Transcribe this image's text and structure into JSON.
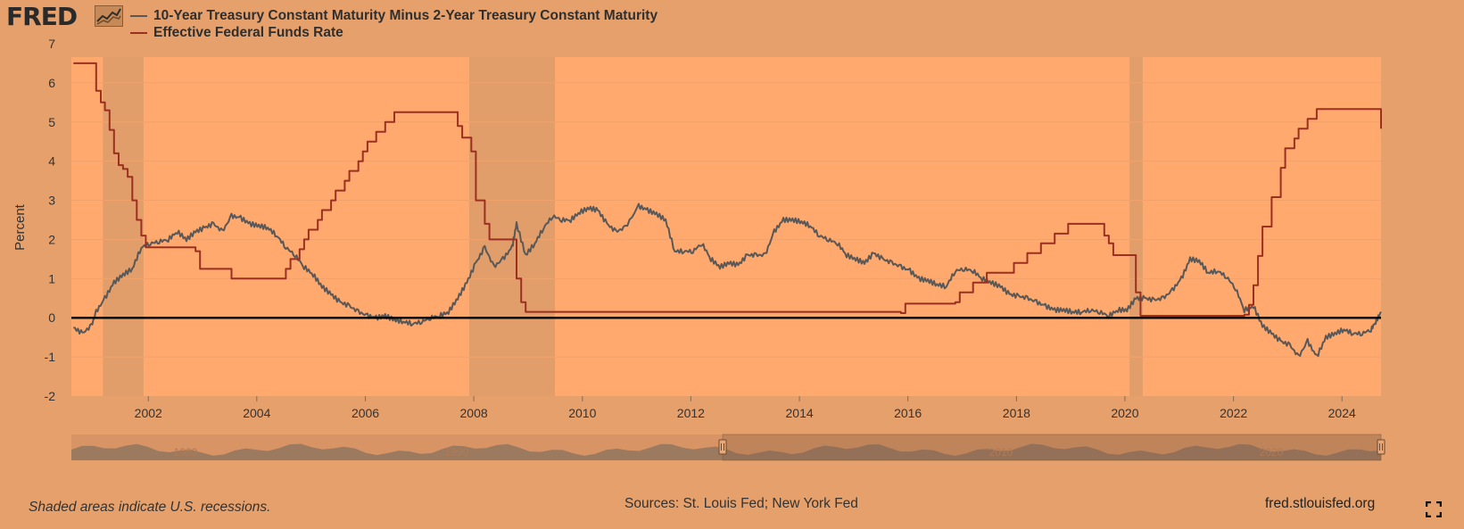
{
  "header": {
    "logo_text": "FRED",
    "logo_icon": "chart-line-icon"
  },
  "colors": {
    "background": "#E5A06B",
    "plot_bg": "#FFA96E",
    "recession": "#E29E6A",
    "spread_line": "#585858",
    "fedfunds_line": "#9B2F20",
    "zero_line": "#000000",
    "navigator": "#9C7A60"
  },
  "chart_data": {
    "type": "line",
    "ylabel": "Percent",
    "ylim": [
      -2,
      7
    ],
    "y_ticks": [
      "7",
      "6",
      "5",
      "4",
      "3",
      "2",
      "1",
      "0",
      "-1",
      "-2"
    ],
    "x_range": [
      "2000-08-01",
      "2024-09-20"
    ],
    "x_ticks": [
      "2002",
      "2004",
      "2006",
      "2008",
      "2010",
      "2012",
      "2014",
      "2016",
      "2018",
      "2020",
      "2022",
      "2024"
    ],
    "zero_line": true,
    "legend_position": "top-left",
    "recessions": [
      [
        "2001-03-01",
        "2001-11-30"
      ],
      [
        "2007-12-01",
        "2009-06-30"
      ],
      [
        "2020-02-01",
        "2020-04-30"
      ]
    ],
    "series": [
      {
        "name": "10-Year Treasury Constant Maturity Minus 2-Year Treasury Constant Maturity",
        "color": "#585858",
        "points": [
          [
            "2000-08",
            -0.25
          ],
          [
            "2000-10",
            -0.4
          ],
          [
            "2000-12",
            -0.2
          ],
          [
            "2001-01",
            0.15
          ],
          [
            "2001-03",
            0.5
          ],
          [
            "2001-05",
            0.9
          ],
          [
            "2001-07",
            1.1
          ],
          [
            "2001-09",
            1.25
          ],
          [
            "2001-11",
            1.8
          ],
          [
            "2002-01",
            1.9
          ],
          [
            "2002-03",
            1.95
          ],
          [
            "2002-05",
            2.0
          ],
          [
            "2002-07",
            2.2
          ],
          [
            "2002-09",
            2.0
          ],
          [
            "2002-11",
            2.2
          ],
          [
            "2003-01",
            2.3
          ],
          [
            "2003-03",
            2.4
          ],
          [
            "2003-05",
            2.2
          ],
          [
            "2003-07",
            2.6
          ],
          [
            "2003-09",
            2.55
          ],
          [
            "2003-11",
            2.4
          ],
          [
            "2004-01",
            2.35
          ],
          [
            "2004-03",
            2.3
          ],
          [
            "2004-05",
            2.1
          ],
          [
            "2004-07",
            1.8
          ],
          [
            "2004-09",
            1.6
          ],
          [
            "2004-11",
            1.3
          ],
          [
            "2005-01",
            1.1
          ],
          [
            "2005-03",
            0.8
          ],
          [
            "2005-05",
            0.6
          ],
          [
            "2005-07",
            0.4
          ],
          [
            "2005-09",
            0.3
          ],
          [
            "2005-11",
            0.15
          ],
          [
            "2006-01",
            0.05
          ],
          [
            "2006-03",
            0.0
          ],
          [
            "2006-05",
            0.05
          ],
          [
            "2006-07",
            -0.05
          ],
          [
            "2006-09",
            -0.1
          ],
          [
            "2006-11",
            -0.15
          ],
          [
            "2007-01",
            -0.1
          ],
          [
            "2007-03",
            0.0
          ],
          [
            "2007-05",
            0.05
          ],
          [
            "2007-07",
            0.15
          ],
          [
            "2007-09",
            0.5
          ],
          [
            "2007-11",
            0.9
          ],
          [
            "2008-01",
            1.4
          ],
          [
            "2008-03",
            1.8
          ],
          [
            "2008-05",
            1.3
          ],
          [
            "2008-07",
            1.5
          ],
          [
            "2008-09",
            1.8
          ],
          [
            "2008-10",
            2.4
          ],
          [
            "2008-12",
            1.6
          ],
          [
            "2009-02",
            1.9
          ],
          [
            "2009-04",
            2.3
          ],
          [
            "2009-06",
            2.6
          ],
          [
            "2009-08",
            2.5
          ],
          [
            "2009-10",
            2.5
          ],
          [
            "2009-12",
            2.7
          ],
          [
            "2010-02",
            2.8
          ],
          [
            "2010-04",
            2.75
          ],
          [
            "2010-06",
            2.4
          ],
          [
            "2010-08",
            2.2
          ],
          [
            "2010-10",
            2.3
          ],
          [
            "2011-01",
            2.85
          ],
          [
            "2011-03",
            2.75
          ],
          [
            "2011-05",
            2.65
          ],
          [
            "2011-07",
            2.5
          ],
          [
            "2011-09",
            1.7
          ],
          [
            "2011-11",
            1.7
          ],
          [
            "2012-01",
            1.7
          ],
          [
            "2012-03",
            1.9
          ],
          [
            "2012-05",
            1.5
          ],
          [
            "2012-07",
            1.3
          ],
          [
            "2012-09",
            1.4
          ],
          [
            "2012-11",
            1.35
          ],
          [
            "2013-01",
            1.6
          ],
          [
            "2013-03",
            1.6
          ],
          [
            "2013-05",
            1.6
          ],
          [
            "2013-07",
            2.2
          ],
          [
            "2013-09",
            2.5
          ],
          [
            "2013-11",
            2.5
          ],
          [
            "2014-01",
            2.45
          ],
          [
            "2014-03",
            2.35
          ],
          [
            "2014-05",
            2.1
          ],
          [
            "2014-07",
            2.0
          ],
          [
            "2014-09",
            1.9
          ],
          [
            "2014-11",
            1.6
          ],
          [
            "2015-01",
            1.5
          ],
          [
            "2015-03",
            1.4
          ],
          [
            "2015-05",
            1.65
          ],
          [
            "2015-07",
            1.5
          ],
          [
            "2015-09",
            1.4
          ],
          [
            "2015-11",
            1.3
          ],
          [
            "2016-01",
            1.2
          ],
          [
            "2016-03",
            1.0
          ],
          [
            "2016-05",
            0.95
          ],
          [
            "2016-07",
            0.85
          ],
          [
            "2016-09",
            0.8
          ],
          [
            "2016-11",
            1.2
          ],
          [
            "2017-01",
            1.25
          ],
          [
            "2017-03",
            1.2
          ],
          [
            "2017-05",
            1.0
          ],
          [
            "2017-07",
            0.9
          ],
          [
            "2017-09",
            0.8
          ],
          [
            "2017-11",
            0.6
          ],
          [
            "2018-01",
            0.55
          ],
          [
            "2018-03",
            0.5
          ],
          [
            "2018-05",
            0.4
          ],
          [
            "2018-07",
            0.3
          ],
          [
            "2018-09",
            0.2
          ],
          [
            "2018-11",
            0.2
          ],
          [
            "2019-01",
            0.15
          ],
          [
            "2019-03",
            0.15
          ],
          [
            "2019-05",
            0.2
          ],
          [
            "2019-07",
            0.15
          ],
          [
            "2019-09",
            0.05
          ],
          [
            "2019-11",
            0.2
          ],
          [
            "2020-01",
            0.2
          ],
          [
            "2020-03",
            0.5
          ],
          [
            "2020-05",
            0.5
          ],
          [
            "2020-07",
            0.45
          ],
          [
            "2020-09",
            0.5
          ],
          [
            "2020-11",
            0.7
          ],
          [
            "2021-01",
            1.0
          ],
          [
            "2021-03",
            1.5
          ],
          [
            "2021-05",
            1.45
          ],
          [
            "2021-07",
            1.15
          ],
          [
            "2021-09",
            1.2
          ],
          [
            "2021-11",
            1.05
          ],
          [
            "2022-01",
            0.75
          ],
          [
            "2022-03",
            0.2
          ],
          [
            "2022-05",
            0.3
          ],
          [
            "2022-07",
            -0.2
          ],
          [
            "2022-09",
            -0.4
          ],
          [
            "2022-11",
            -0.6
          ],
          [
            "2023-01",
            -0.7
          ],
          [
            "2023-03",
            -1.0
          ],
          [
            "2023-05",
            -0.6
          ],
          [
            "2023-07",
            -1.0
          ],
          [
            "2023-09",
            -0.5
          ],
          [
            "2023-11",
            -0.4
          ],
          [
            "2024-01",
            -0.3
          ],
          [
            "2024-03",
            -0.4
          ],
          [
            "2024-05",
            -0.4
          ],
          [
            "2024-07",
            -0.3
          ],
          [
            "2024-08",
            -0.1
          ],
          [
            "2024-09-20",
            0.15
          ]
        ]
      },
      {
        "name": "Effective Federal Funds Rate",
        "color": "#9B2F20",
        "points": [
          [
            "2000-08",
            6.5
          ],
          [
            "2000-12",
            6.5
          ],
          [
            "2001-01",
            5.8
          ],
          [
            "2001-02",
            5.5
          ],
          [
            "2001-03",
            5.3
          ],
          [
            "2001-04",
            4.8
          ],
          [
            "2001-05",
            4.2
          ],
          [
            "2001-06",
            3.9
          ],
          [
            "2001-07",
            3.8
          ],
          [
            "2001-08",
            3.6
          ],
          [
            "2001-09",
            3.0
          ],
          [
            "2001-10",
            2.5
          ],
          [
            "2001-11",
            2.1
          ],
          [
            "2001-12",
            1.8
          ],
          [
            "2002-11",
            1.7
          ],
          [
            "2002-12",
            1.25
          ],
          [
            "2003-06",
            1.25
          ],
          [
            "2003-07",
            1.0
          ],
          [
            "2004-06",
            1.0
          ],
          [
            "2004-07",
            1.25
          ],
          [
            "2004-08",
            1.5
          ],
          [
            "2004-10",
            1.75
          ],
          [
            "2004-11",
            2.0
          ],
          [
            "2004-12",
            2.25
          ],
          [
            "2005-02",
            2.5
          ],
          [
            "2005-03",
            2.75
          ],
          [
            "2005-05",
            3.0
          ],
          [
            "2005-06",
            3.25
          ],
          [
            "2005-08",
            3.5
          ],
          [
            "2005-09",
            3.75
          ],
          [
            "2005-11",
            4.0
          ],
          [
            "2005-12",
            4.25
          ],
          [
            "2006-01",
            4.5
          ],
          [
            "2006-03",
            4.75
          ],
          [
            "2006-05",
            5.0
          ],
          [
            "2006-07",
            5.25
          ],
          [
            "2007-08",
            5.25
          ],
          [
            "2007-09",
            4.9
          ],
          [
            "2007-10",
            4.6
          ],
          [
            "2007-12",
            4.25
          ],
          [
            "2008-01",
            3.0
          ],
          [
            "2008-02",
            3.0
          ],
          [
            "2008-03",
            2.4
          ],
          [
            "2008-04",
            2.0
          ],
          [
            "2008-09",
            2.0
          ],
          [
            "2008-10",
            1.0
          ],
          [
            "2008-11",
            0.4
          ],
          [
            "2008-12",
            0.15
          ],
          [
            "2015-11",
            0.12
          ],
          [
            "2015-12",
            0.36
          ],
          [
            "2016-11",
            0.4
          ],
          [
            "2016-12",
            0.65
          ],
          [
            "2017-03",
            0.9
          ],
          [
            "2017-06",
            1.15
          ],
          [
            "2017-12",
            1.4
          ],
          [
            "2018-03",
            1.65
          ],
          [
            "2018-06",
            1.9
          ],
          [
            "2018-09",
            2.15
          ],
          [
            "2018-12",
            2.4
          ],
          [
            "2019-07",
            2.4
          ],
          [
            "2019-08",
            2.1
          ],
          [
            "2019-09",
            1.9
          ],
          [
            "2019-10",
            1.6
          ],
          [
            "2020-02",
            1.6
          ],
          [
            "2020-03",
            0.65
          ],
          [
            "2020-04",
            0.05
          ],
          [
            "2022-03",
            0.08
          ],
          [
            "2022-04",
            0.33
          ],
          [
            "2022-05",
            0.83
          ],
          [
            "2022-06",
            1.58
          ],
          [
            "2022-07",
            2.33
          ],
          [
            "2022-09",
            3.08
          ],
          [
            "2022-11",
            3.83
          ],
          [
            "2022-12",
            4.33
          ],
          [
            "2023-02",
            4.58
          ],
          [
            "2023-03",
            4.83
          ],
          [
            "2023-05",
            5.08
          ],
          [
            "2023-07",
            5.33
          ],
          [
            "2024-09-17",
            5.33
          ],
          [
            "2024-09-20",
            4.83
          ]
        ]
      }
    ],
    "navigator": {
      "ticks": [
        "1980",
        "1990",
        "2010",
        "2020"
      ]
    }
  },
  "footer": {
    "note": "Shaded areas indicate U.S. recessions.",
    "sources": "Sources: St. Louis Fed; New York Fed",
    "site": "fred.stlouisfed.org"
  }
}
